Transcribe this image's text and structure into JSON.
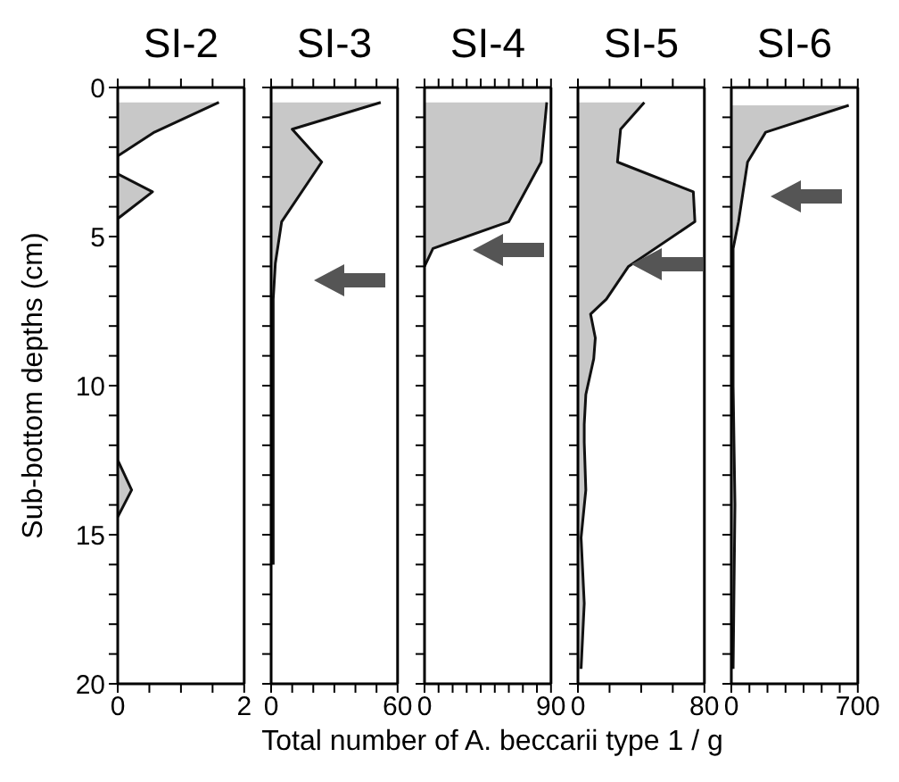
{
  "chart_data": [
    {
      "type": "area",
      "title": "SI-2",
      "ylabel": "Sub-bottom depths (cm)",
      "orientation": "horizontal",
      "x": [
        0.5,
        1.5,
        2.3,
        2.9,
        3.5,
        4.4,
        12.5,
        13.5,
        14.4
      ],
      "series": [
        {
          "color": "#c8c8c8",
          "values": [
            1.6,
            0.58,
            0,
            0,
            0.55,
            0,
            0,
            0.22,
            0
          ]
        }
      ],
      "xlim": [
        0,
        2
      ],
      "xticks": [
        0,
        {
          "value": 0.5,
          "label": null
        },
        {
          "value": 1,
          "label": null
        },
        {
          "value": 1.5,
          "label": null
        },
        2
      ],
      "ylim": [
        20,
        0
      ],
      "yticks": [
        0,
        {
          "value": 1,
          "label": null
        },
        {
          "value": 2,
          "label": null
        },
        {
          "value": 3,
          "label": null
        },
        {
          "value": 4,
          "label": null
        },
        5,
        {
          "value": 6,
          "label": null
        },
        {
          "value": 7,
          "label": null
        },
        {
          "value": 8,
          "label": null
        },
        {
          "value": 9,
          "label": null
        },
        10,
        {
          "value": 11,
          "label": null
        },
        {
          "value": 12,
          "label": null
        },
        {
          "value": 13,
          "label": null
        },
        {
          "value": 14,
          "label": null
        },
        15,
        {
          "value": 16,
          "label": null
        },
        {
          "value": 17,
          "label": null
        },
        {
          "value": 18,
          "label": null
        },
        {
          "value": 19,
          "label": null
        },
        20
      ]
    },
    {
      "type": "area",
      "title": "SI-3",
      "orientation": "horizontal",
      "tick_labels": "x",
      "x": [
        0.5,
        1.4,
        2.5,
        4.5,
        5.9,
        7.1,
        10,
        12,
        16
      ],
      "series": [
        {
          "color": "#c8c8c8",
          "values": [
            52,
            10,
            24,
            5,
            2,
            1,
            1,
            1,
            1
          ]
        }
      ],
      "xlim": [
        0,
        60
      ],
      "xticks": [
        0,
        {
          "value": 10,
          "label": null
        },
        {
          "value": 20,
          "label": null
        },
        {
          "value": 30,
          "label": null
        },
        {
          "value": 40,
          "label": null
        },
        {
          "value": 50,
          "label": null
        },
        60
      ],
      "ylim": [
        20,
        0
      ],
      "yticks": [
        0,
        {
          "value": 1,
          "label": null
        },
        {
          "value": 2,
          "label": null
        },
        {
          "value": 3,
          "label": null
        },
        {
          "value": 4,
          "label": null
        },
        5,
        {
          "value": 6,
          "label": null
        },
        {
          "value": 7,
          "label": null
        },
        {
          "value": 8,
          "label": null
        },
        {
          "value": 9,
          "label": null
        },
        10,
        {
          "value": 11,
          "label": null
        },
        {
          "value": 12,
          "label": null
        },
        {
          "value": 13,
          "label": null
        },
        {
          "value": 14,
          "label": null
        },
        15,
        {
          "value": 16,
          "label": null
        },
        {
          "value": 17,
          "label": null
        },
        {
          "value": 18,
          "label": null
        },
        {
          "value": 19,
          "label": null
        },
        20
      ]
    },
    {
      "type": "area",
      "title": "SI-4",
      "orientation": "horizontal",
      "tick_labels": "x",
      "xlabel": "Total number of A. beccarii type 1 / g",
      "x": [
        0.5,
        2.5,
        4.5,
        5.4,
        6
      ],
      "series": [
        {
          "color": "#c8c8c8",
          "values": [
            87,
            83,
            60,
            6,
            0
          ]
        }
      ],
      "xlim": [
        0,
        90
      ],
      "xticks": [
        0,
        {
          "value": 10,
          "label": null
        },
        {
          "value": 20,
          "label": null
        },
        {
          "value": 30,
          "label": null
        },
        {
          "value": 40,
          "label": null
        },
        {
          "value": 50,
          "label": null
        },
        {
          "value": 60,
          "label": null
        },
        {
          "value": 70,
          "label": null
        },
        {
          "value": 80,
          "label": null
        },
        90
      ],
      "ylim": [
        20,
        0
      ],
      "yticks": [
        0,
        {
          "value": 1,
          "label": null
        },
        {
          "value": 2,
          "label": null
        },
        {
          "value": 3,
          "label": null
        },
        {
          "value": 4,
          "label": null
        },
        5,
        {
          "value": 6,
          "label": null
        },
        {
          "value": 7,
          "label": null
        },
        {
          "value": 8,
          "label": null
        },
        {
          "value": 9,
          "label": null
        },
        10,
        {
          "value": 11,
          "label": null
        },
        {
          "value": 12,
          "label": null
        },
        {
          "value": 13,
          "label": null
        },
        {
          "value": 14,
          "label": null
        },
        15,
        {
          "value": 16,
          "label": null
        },
        {
          "value": 17,
          "label": null
        },
        {
          "value": 18,
          "label": null
        },
        {
          "value": 19,
          "label": null
        },
        20
      ]
    },
    {
      "type": "area",
      "title": "SI-5",
      "orientation": "horizontal",
      "tick_labels": "x",
      "x": [
        0.5,
        1.4,
        2.5,
        3.5,
        4.5,
        6,
        7.1,
        7.6,
        8.4,
        9.1,
        10.3,
        11.3,
        11.9,
        13.5,
        15.1,
        17.3,
        19.5
      ],
      "series": [
        {
          "color": "#c8c8c8",
          "values": [
            42,
            27,
            25,
            73,
            74,
            32,
            18,
            8,
            11,
            10,
            5,
            4,
            4,
            5,
            2,
            4,
            2
          ]
        }
      ],
      "xlim": [
        0,
        80
      ],
      "xticks": [
        0,
        {
          "value": 20,
          "label": null
        },
        {
          "value": 40,
          "label": null
        },
        {
          "value": 60,
          "label": null
        },
        80
      ],
      "ylim": [
        20,
        0
      ],
      "yticks": [
        0,
        {
          "value": 1,
          "label": null
        },
        {
          "value": 2,
          "label": null
        },
        {
          "value": 3,
          "label": null
        },
        {
          "value": 4,
          "label": null
        },
        5,
        {
          "value": 6,
          "label": null
        },
        {
          "value": 7,
          "label": null
        },
        {
          "value": 8,
          "label": null
        },
        {
          "value": 9,
          "label": null
        },
        10,
        {
          "value": 11,
          "label": null
        },
        {
          "value": 12,
          "label": null
        },
        {
          "value": 13,
          "label": null
        },
        {
          "value": 14,
          "label": null
        },
        15,
        {
          "value": 16,
          "label": null
        },
        {
          "value": 17,
          "label": null
        },
        {
          "value": 18,
          "label": null
        },
        {
          "value": 19,
          "label": null
        },
        20
      ]
    },
    {
      "type": "area",
      "title": "SI-6",
      "orientation": "horizontal",
      "tick_labels": "x",
      "x": [
        0.6,
        1.5,
        2.5,
        4.5,
        5.4,
        10,
        14,
        19.5
      ],
      "series": [
        {
          "color": "#c8c8c8",
          "values": [
            650,
            190,
            90,
            40,
            10,
            10,
            20,
            10
          ]
        }
      ],
      "xlim": [
        0,
        700
      ],
      "xticks": [
        0,
        {
          "value": 100,
          "label": null
        },
        {
          "value": 200,
          "label": null
        },
        {
          "value": 300,
          "label": null
        },
        {
          "value": 400,
          "label": null
        },
        {
          "value": 500,
          "label": null
        },
        {
          "value": 600,
          "label": null
        },
        700
      ],
      "ylim": [
        20,
        0
      ],
      "yticks": [
        0,
        {
          "value": 1,
          "label": null
        },
        {
          "value": 2,
          "label": null
        },
        {
          "value": 3,
          "label": null
        },
        {
          "value": 4,
          "label": null
        },
        5,
        {
          "value": 6,
          "label": null
        },
        {
          "value": 7,
          "label": null
        },
        {
          "value": 8,
          "label": null
        },
        {
          "value": 9,
          "label": null
        },
        10,
        {
          "value": 11,
          "label": null
        },
        {
          "value": 12,
          "label": null
        },
        {
          "value": 13,
          "label": null
        },
        {
          "value": 14,
          "label": null
        },
        15,
        {
          "value": 16,
          "label": null
        },
        {
          "value": 17,
          "label": null
        },
        {
          "value": 18,
          "label": null
        },
        {
          "value": 19,
          "label": null
        },
        20
      ]
    }
  ]
}
